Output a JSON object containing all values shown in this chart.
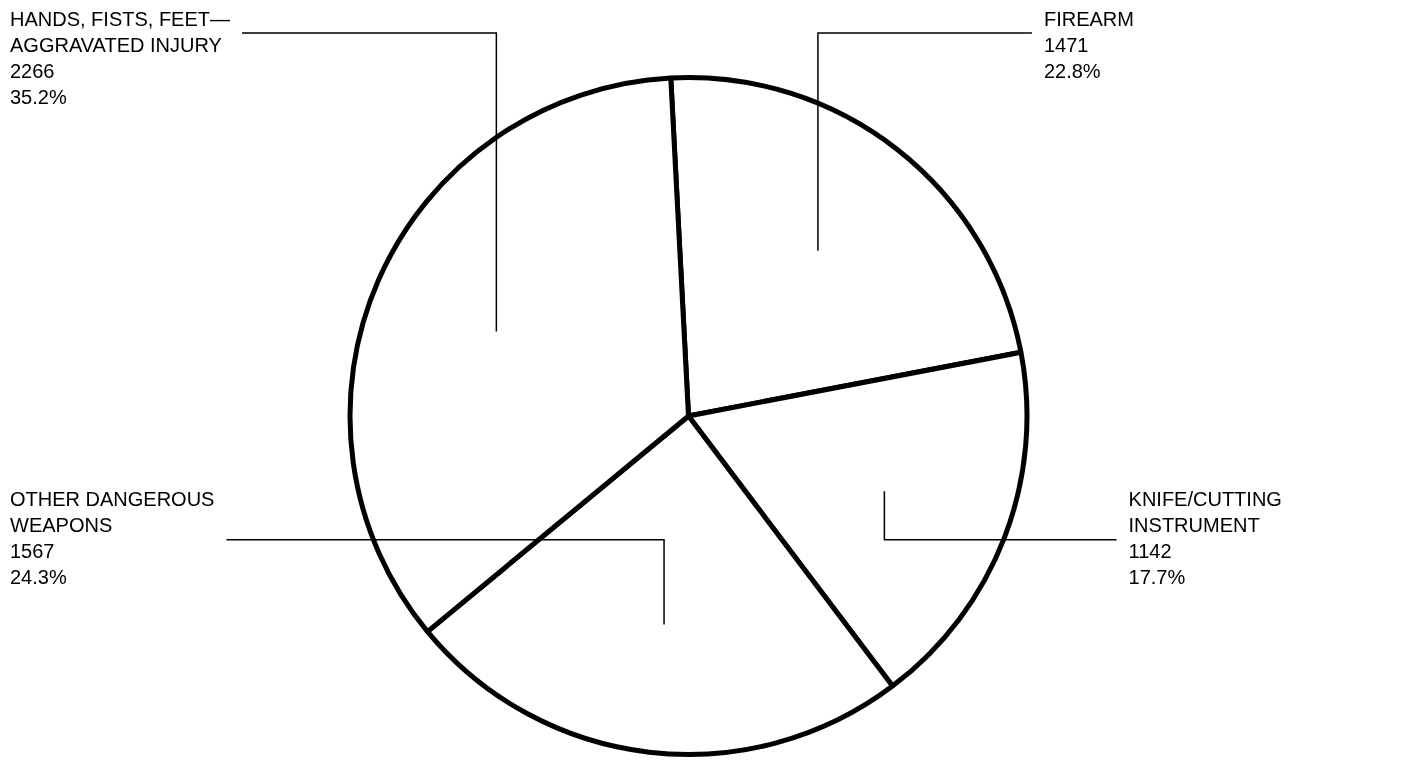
{
  "chart_data": {
    "type": "pie",
    "categories": [
      "FIREARM",
      "KNIFE/CUTTING INSTRUMENT",
      "OTHER DANGEROUS WEAPONS",
      "HANDS, FISTS, FEET—AGGRAVATED INJURY"
    ],
    "values": [
      1471,
      1142,
      1567,
      2266
    ],
    "colors": [
      "#ffffff",
      "#ffffff",
      "#ffffff",
      "#ffffff"
    ],
    "value_labels": [
      "1471\n22.8%",
      "1142\n17.7%",
      "1567\n24.3%",
      "2266\n35.2%"
    ],
    "legend": false
  }
}
